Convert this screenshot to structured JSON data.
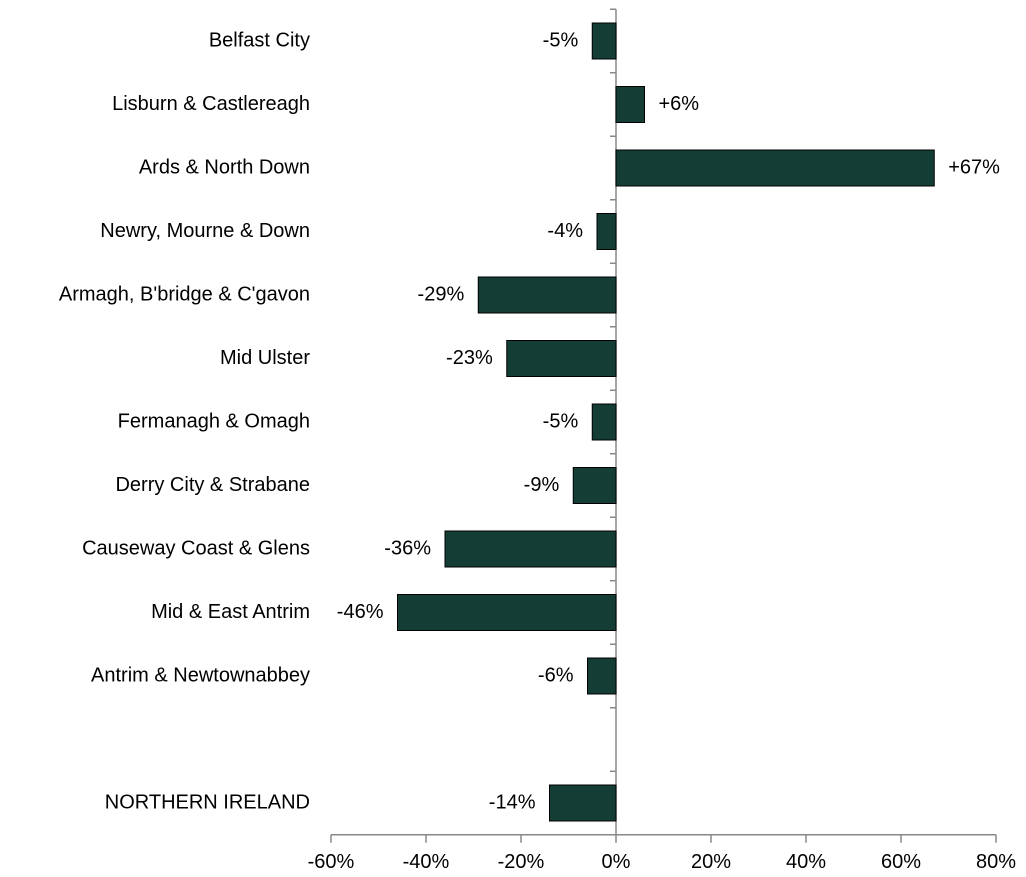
{
  "chart_data": {
    "type": "bar",
    "orientation": "horizontal",
    "categories": [
      "Belfast City",
      "Lisburn & Castlereagh",
      "Ards & North Down",
      "Newry, Mourne & Down",
      "Armagh, B'bridge & C'gavon",
      "Mid Ulster",
      "Fermanagh & Omagh",
      "Derry City & Strabane",
      "Causeway Coast & Glens",
      "Mid & East Antrim",
      "Antrim & Newtownabbey",
      null,
      "NORTHERN IRELAND"
    ],
    "values": [
      -5,
      6,
      67,
      -4,
      -29,
      -23,
      -5,
      -9,
      -36,
      -46,
      -6,
      null,
      -14
    ],
    "value_labels": [
      "-5%",
      "+6%",
      "+67%",
      "-4%",
      "-29%",
      "-23%",
      "-5%",
      "-9%",
      "-36%",
      "-46%",
      "-6%",
      null,
      "-14%"
    ],
    "color": "#143d35",
    "xlim": [
      -60,
      80
    ],
    "xticks": [
      {
        "value": -60,
        "label": "-60%"
      },
      {
        "value": -40,
        "label": "-40%"
      },
      {
        "value": -20,
        "label": "-20%"
      },
      {
        "value": 0,
        "label": "0%"
      },
      {
        "value": 20,
        "label": "20%"
      },
      {
        "value": 40,
        "label": "40%"
      },
      {
        "value": 60,
        "label": "60%"
      },
      {
        "value": 80,
        "label": "80%"
      }
    ],
    "grid": false
  }
}
